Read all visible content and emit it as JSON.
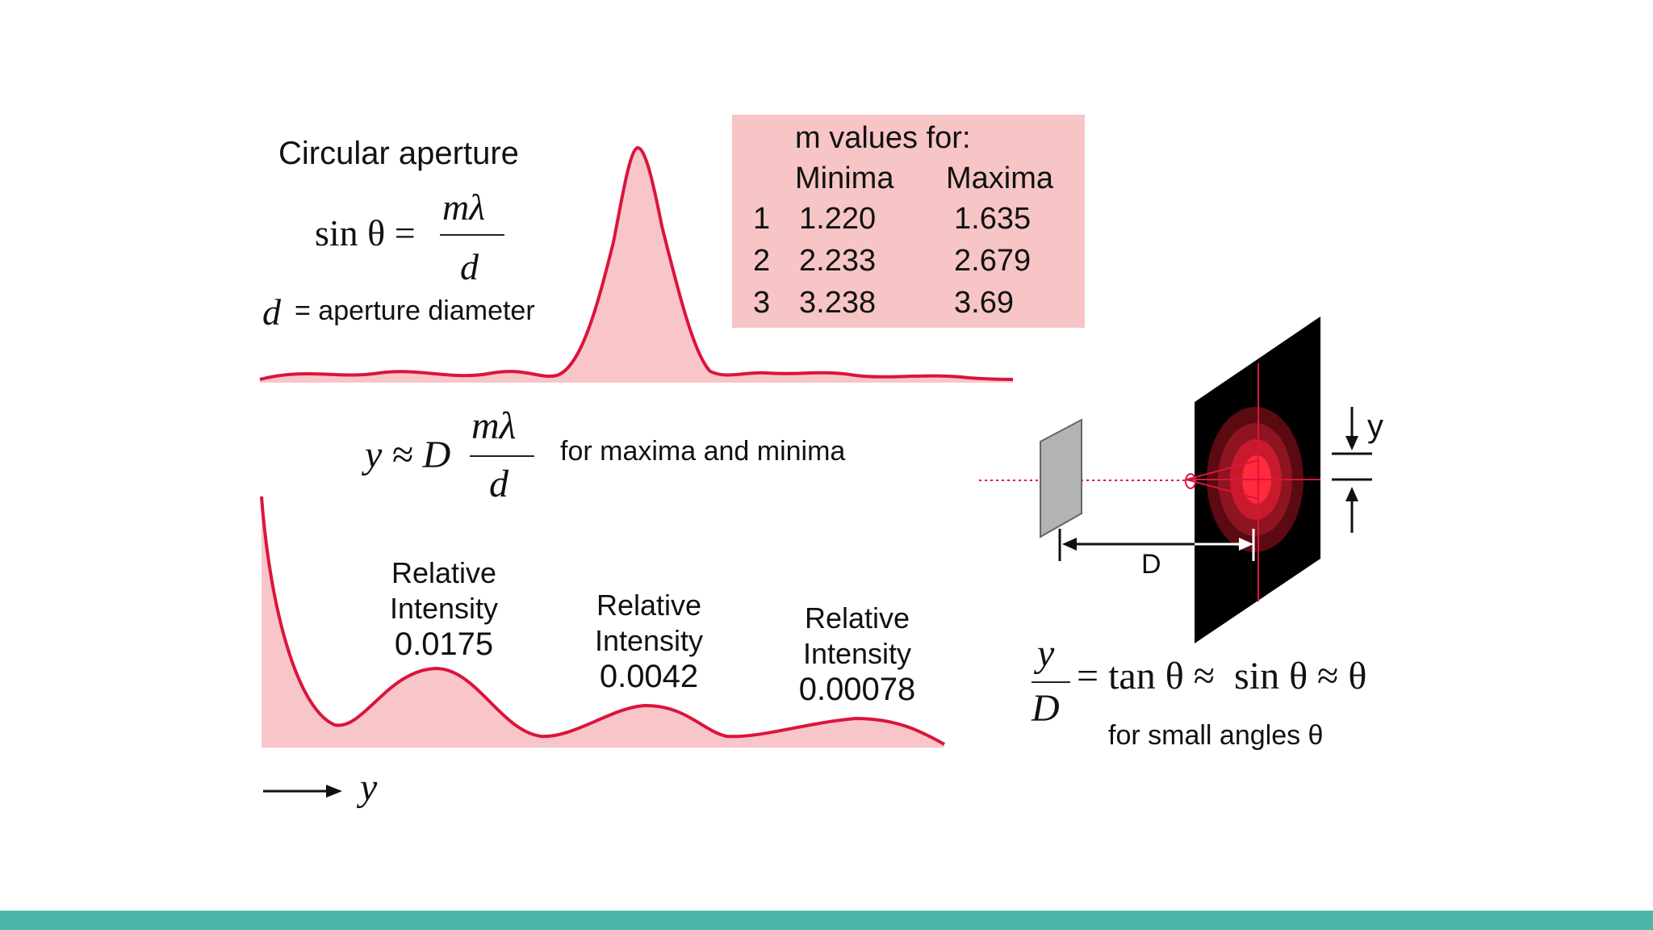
{
  "aperture": {
    "title": "Circular aperture",
    "eq_lhs": "sin θ =",
    "eq_num": "mλ",
    "eq_den": "d",
    "d_symbol": "d",
    "d_def": "= aperture diameter"
  },
  "table": {
    "header": "m values for:",
    "col_minima": "Minima",
    "col_maxima": "Maxima",
    "rows": [
      {
        "m": "1",
        "min": "1.220",
        "max": "1.635"
      },
      {
        "m": "2",
        "min": "2.233",
        "max": "2.679"
      },
      {
        "m": "3",
        "min": "3.238",
        "max": "3.69"
      }
    ]
  },
  "y_formula": {
    "lhs": "y ≈ D",
    "num": "mλ",
    "den": "d",
    "note": "for maxima and minima"
  },
  "peaks": [
    {
      "label1": "Relative",
      "label2": "Intensity",
      "value": "0.0175"
    },
    {
      "label1": "Relative",
      "label2": "Intensity",
      "value": "0.0042"
    },
    {
      "label1": "Relative",
      "label2": "Intensity",
      "value": "0.00078"
    }
  ],
  "axis": {
    "arrow_label": "y"
  },
  "setup": {
    "y_label": "y",
    "d_label": "D"
  },
  "small_angle": {
    "num": "y",
    "den": "D",
    "rhs": "= tan θ ≈  sin θ ≈ θ",
    "note": "for small angles θ"
  },
  "colors": {
    "curve": "#dc143c",
    "fill": "#f8c6c9",
    "table_bg": "#f7c5c6",
    "bar": "#4db6a9"
  }
}
